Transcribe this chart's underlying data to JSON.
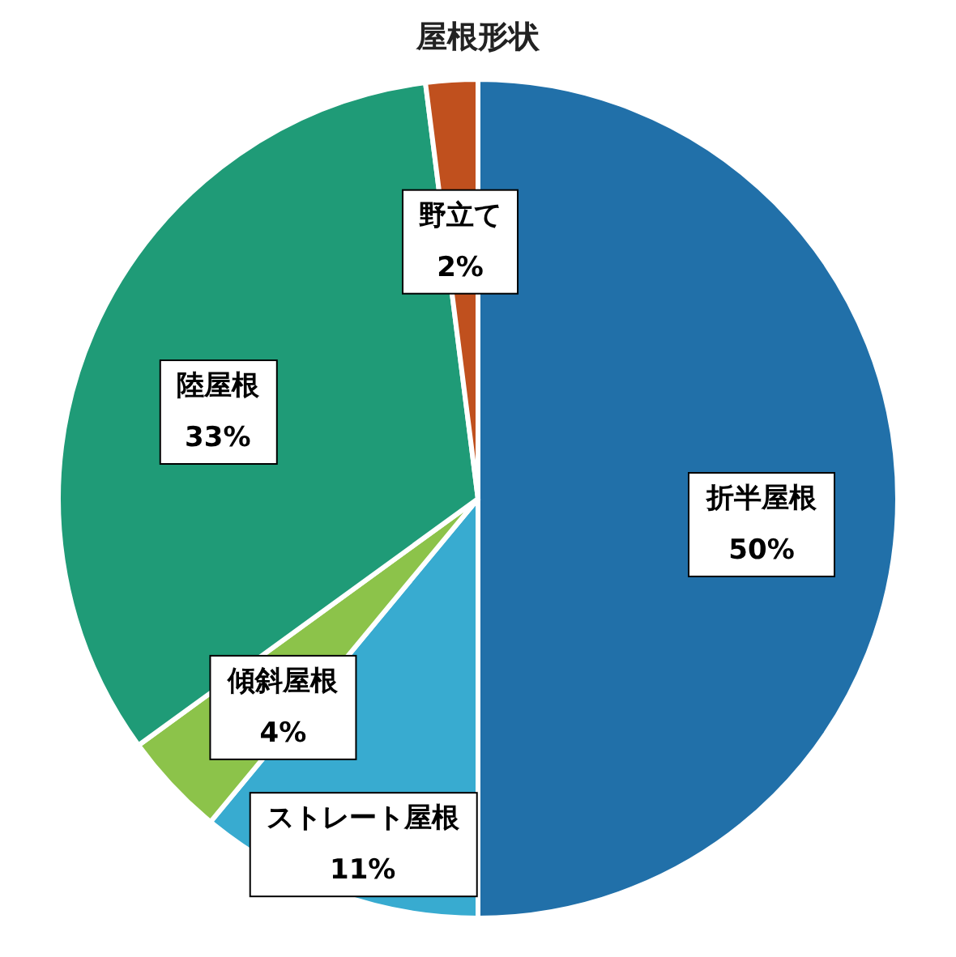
{
  "chart_data": {
    "type": "pie",
    "title": "屋根形状",
    "categories": [
      "折半屋根",
      "ストレート屋根",
      "傾斜屋根",
      "陸屋根",
      "野立て"
    ],
    "values": [
      50,
      11,
      4,
      33,
      2
    ],
    "colors": [
      "#2170a9",
      "#38abd0",
      "#8cc34a",
      "#1f9b77",
      "#c0501e"
    ],
    "value_labels": [
      "50%",
      "11%",
      "4%",
      "33%",
      "2%"
    ],
    "legend": false
  }
}
